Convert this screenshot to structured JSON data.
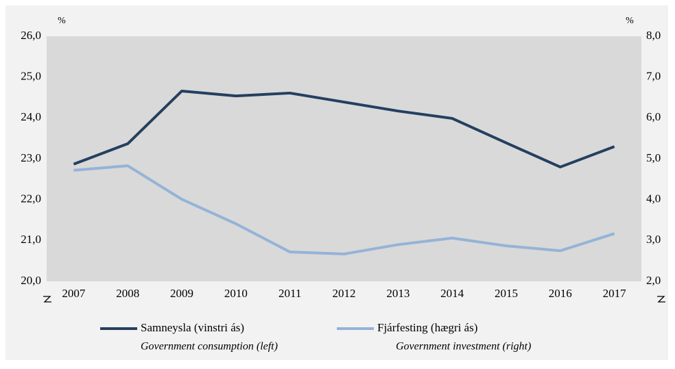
{
  "chart_data": {
    "type": "line",
    "y_label": "%",
    "y2_label": "%",
    "categories": [
      "2007",
      "2008",
      "2009",
      "2010",
      "2011",
      "2012",
      "2013",
      "2014",
      "2015",
      "2016",
      "2017"
    ],
    "series": [
      {
        "name": "Samneysla (vinstri ás)",
        "subtitle": "Government consumption (left)",
        "color": "#243f60",
        "values": [
          22.87,
          23.37,
          24.66,
          24.54,
          24.61,
          24.39,
          24.17,
          23.99,
          23.39,
          22.8,
          23.3
        ]
      },
      {
        "name": "Fjárfesting (hægri ás)",
        "subtitle": "Government investment (right)",
        "color": "#95b3d7",
        "axis": "y2",
        "values": [
          4.72,
          4.83,
          4.01,
          3.41,
          2.72,
          2.67,
          2.9,
          3.06,
          2.87,
          2.75,
          3.17
        ]
      }
    ],
    "ylim": [
      20,
      26
    ],
    "yticks": [
      {
        "value": 20,
        "label": "20,0"
      },
      {
        "value": 21,
        "label": "21,0"
      },
      {
        "value": 22,
        "label": "22,0"
      },
      {
        "value": 23,
        "label": "23,0"
      },
      {
        "value": 24,
        "label": "24,0"
      },
      {
        "value": 25,
        "label": "25,0"
      },
      {
        "value": 26,
        "label": "26,0"
      }
    ],
    "y2lim": [
      2,
      8
    ],
    "y2ticks": [
      {
        "value": 2,
        "label": "2,0"
      },
      {
        "value": 3,
        "label": "3,0"
      },
      {
        "value": 4,
        "label": "4,0"
      },
      {
        "value": 5,
        "label": "5,0"
      },
      {
        "value": 6,
        "label": "6,0"
      },
      {
        "value": 7,
        "label": "7,0"
      },
      {
        "value": 8,
        "label": "8,0"
      }
    ],
    "grid": false
  }
}
